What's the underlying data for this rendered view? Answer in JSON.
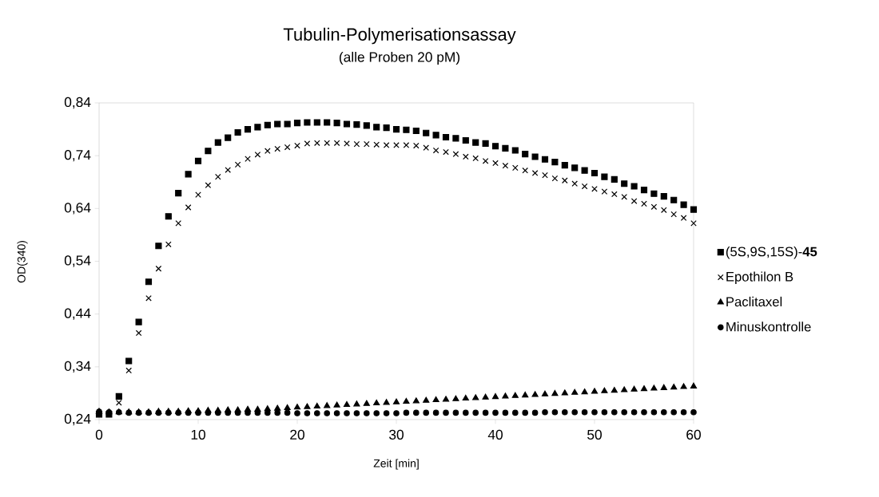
{
  "chart_data": {
    "type": "scatter",
    "title": "Tubulin-Polymerisationsassay",
    "subtitle": "(alle Proben 20 pM)",
    "xlabel": "Zeit [min]",
    "ylabel": "OD(340)",
    "x": [
      0,
      1,
      2,
      3,
      4,
      5,
      6,
      7,
      8,
      9,
      10,
      11,
      12,
      13,
      14,
      15,
      16,
      17,
      18,
      19,
      20,
      21,
      22,
      23,
      24,
      25,
      26,
      27,
      28,
      29,
      30,
      31,
      32,
      33,
      34,
      35,
      36,
      37,
      38,
      39,
      40,
      41,
      42,
      43,
      44,
      45,
      46,
      47,
      48,
      49,
      50,
      51,
      52,
      53,
      54,
      55,
      56,
      57,
      58,
      59,
      60
    ],
    "xlim": [
      0,
      60
    ],
    "xticks": [
      0,
      10,
      20,
      30,
      40,
      50,
      60
    ],
    "ylim": [
      0.24,
      0.84
    ],
    "yticks": [
      {
        "value": 0.24,
        "label": "0,24"
      },
      {
        "value": 0.34,
        "label": "0,34"
      },
      {
        "value": 0.44,
        "label": "0,44"
      },
      {
        "value": 0.54,
        "label": "0,54"
      },
      {
        "value": 0.64,
        "label": "0,64"
      },
      {
        "value": 0.74,
        "label": "0,74"
      },
      {
        "value": 0.84,
        "label": "0,84"
      }
    ],
    "grid": false,
    "legend": "right",
    "series": [
      {
        "name": "(5S,9S,15S)-**45**",
        "color": "#000000",
        "marker": "square",
        "values": [
          0.25,
          0.25,
          0.284,
          0.351,
          0.425,
          0.501,
          0.569,
          0.625,
          0.669,
          0.705,
          0.73,
          0.749,
          0.765,
          0.774,
          0.784,
          0.79,
          0.794,
          0.798,
          0.8,
          0.8,
          0.802,
          0.803,
          0.803,
          0.803,
          0.802,
          0.8,
          0.799,
          0.797,
          0.794,
          0.793,
          0.79,
          0.789,
          0.787,
          0.783,
          0.779,
          0.775,
          0.773,
          0.769,
          0.765,
          0.763,
          0.758,
          0.754,
          0.75,
          0.743,
          0.738,
          0.733,
          0.728,
          0.722,
          0.717,
          0.712,
          0.707,
          0.7,
          0.695,
          0.687,
          0.682,
          0.675,
          0.668,
          0.663,
          0.656,
          0.647,
          0.638
        ]
      },
      {
        "name": "Epothilon B",
        "color": "#000000",
        "marker": "cross",
        "values": [
          null,
          null,
          0.272,
          0.333,
          0.404,
          0.47,
          0.526,
          0.572,
          0.612,
          0.642,
          0.666,
          0.684,
          0.7,
          0.713,
          0.723,
          0.734,
          0.742,
          0.749,
          0.753,
          0.756,
          0.759,
          0.763,
          0.764,
          0.764,
          0.764,
          0.763,
          0.762,
          0.762,
          0.761,
          0.76,
          0.76,
          0.76,
          0.759,
          0.755,
          0.75,
          0.747,
          0.743,
          0.738,
          0.735,
          0.73,
          0.726,
          0.721,
          0.717,
          0.712,
          0.707,
          0.703,
          0.697,
          0.693,
          0.687,
          0.682,
          0.677,
          0.672,
          0.667,
          0.662,
          0.654,
          0.649,
          0.643,
          0.637,
          0.629,
          0.622,
          0.612
        ]
      },
      {
        "name": "Paclitaxel",
        "color": "#000000",
        "marker": "triangle",
        "values": [
          0.255,
          0.254,
          0.254,
          0.254,
          0.254,
          0.254,
          0.255,
          0.255,
          0.255,
          0.256,
          0.256,
          0.257,
          0.257,
          0.258,
          0.258,
          0.259,
          0.259,
          0.26,
          0.261,
          0.262,
          0.263,
          0.264,
          0.265,
          0.266,
          0.267,
          0.268,
          0.269,
          0.27,
          0.271,
          0.272,
          0.273,
          0.274,
          0.275,
          0.276,
          0.277,
          0.278,
          0.279,
          0.28,
          0.281,
          0.282,
          0.283,
          0.284,
          0.285,
          0.286,
          0.287,
          0.288,
          0.289,
          0.29,
          0.291,
          0.292,
          0.293,
          0.294,
          0.295,
          0.296,
          0.297,
          0.298,
          0.299,
          0.3,
          0.301,
          0.302,
          0.303
        ]
      },
      {
        "name": "Minuskontrolle",
        "color": "#000000",
        "marker": "circle",
        "values": [
          0.255,
          0.254,
          0.254,
          0.253,
          0.253,
          0.253,
          0.253,
          0.253,
          0.253,
          0.253,
          0.253,
          0.253,
          0.253,
          0.253,
          0.253,
          0.253,
          0.253,
          0.253,
          0.253,
          0.253,
          0.252,
          0.252,
          0.252,
          0.252,
          0.252,
          0.252,
          0.252,
          0.252,
          0.252,
          0.252,
          0.252,
          0.253,
          0.253,
          0.253,
          0.253,
          0.253,
          0.253,
          0.253,
          0.253,
          0.253,
          0.253,
          0.253,
          0.253,
          0.253,
          0.253,
          0.254,
          0.254,
          0.254,
          0.254,
          0.254,
          0.254,
          0.254,
          0.254,
          0.254,
          0.254,
          0.254,
          0.254,
          0.254,
          0.254,
          0.254,
          0.254
        ]
      }
    ]
  }
}
